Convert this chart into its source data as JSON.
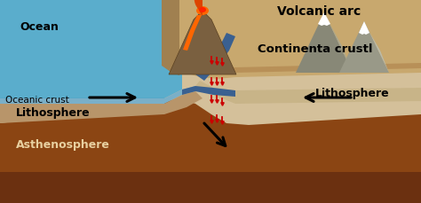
{
  "ocean_color": "#5aadcc",
  "oceanic_crust_color": "#7aafc8",
  "continental_surface_color": "#c8a86e",
  "continental_surface_dark": "#b89058",
  "lithosphere_left_color": "#b8956a",
  "lithosphere_right_color": "#c8b488",
  "asthenosphere_color": "#8b4513",
  "asthenosphere_dark": "#6b3010",
  "subduction_blue": "#3a6090",
  "lava_color": "#ff6600",
  "lava_inner": "#ff2200",
  "magma_drops_color": "#cc0000",
  "snow_color": "#ffffff",
  "background_color": "#d4c09a",
  "coast_color": "#a08050",
  "volcano_color": "#7a6040",
  "mountain_color": "#888877",
  "mountain_light": "#aaa890",
  "labels": {
    "ocean": "Ocean",
    "oceanic_crust": "Oceanic crust",
    "volcanic_arc": "Volcanic arc",
    "continental_crust": "Continenta crustl",
    "lithosphere_left": "Lithosphere",
    "lithosphere_right": "Lithosphere",
    "asthenosphere": "Asthenosphere"
  },
  "label_color": "#000000",
  "label_light": "#e8d0a0",
  "label_fontsize": 9
}
